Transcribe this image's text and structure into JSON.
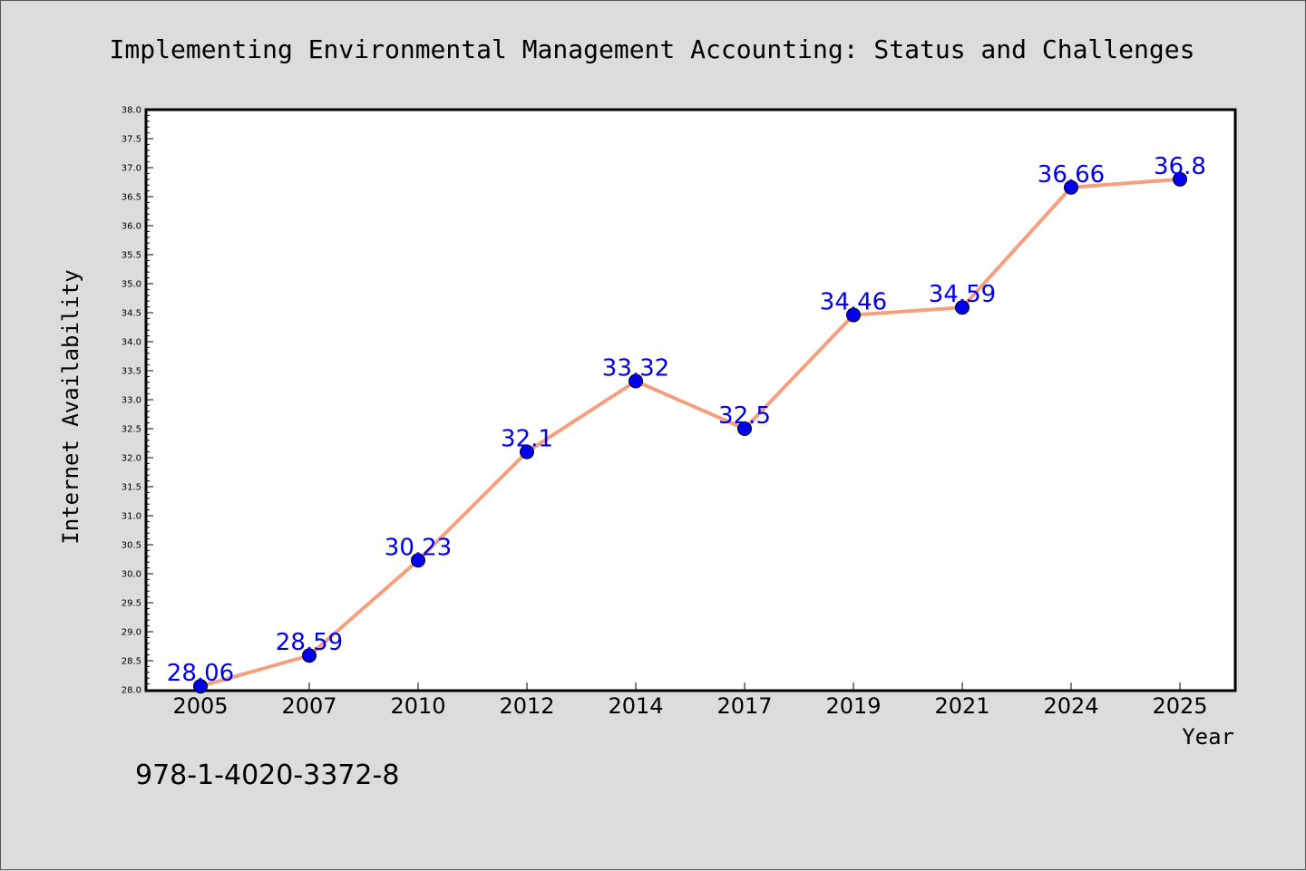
{
  "chart_data": {
    "type": "line",
    "title": "Implementing Environmental Management Accounting: Status and Challenges",
    "xlabel": "Year",
    "ylabel": "Internet Availability",
    "categories": [
      "2005",
      "2007",
      "2010",
      "2012",
      "2014",
      "2017",
      "2019",
      "2021",
      "2024",
      "2025"
    ],
    "series": [
      {
        "values": [
          28.06,
          28.59,
          30.23,
          32.1,
          33.32,
          32.5,
          34.46,
          34.59,
          36.66,
          36.8
        ]
      }
    ],
    "data_labels": [
      "28.06",
      "28.59",
      "30.23",
      "32.1",
      "33.32",
      "32.5",
      "34.46",
      "34.59",
      "36.66",
      "36.8"
    ],
    "ylim": [
      28.0,
      38.0
    ],
    "ytick_step": 0.5,
    "grid": false,
    "line_color": "#f4a07f",
    "marker_color": "#0000ee",
    "label_color": "#0000ee"
  },
  "footer": {
    "isbn": "978-1-4020-3372-8"
  }
}
